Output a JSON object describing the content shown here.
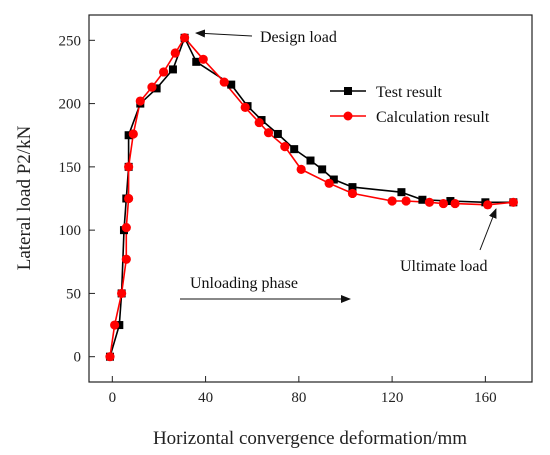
{
  "chart_data": {
    "type": "line",
    "title": "",
    "xlabel": "Horizontal convergence deformation/mm",
    "ylabel": "Lateral load P2/kN",
    "xlim": [
      -10,
      180
    ],
    "ylim": [
      -20,
      270
    ],
    "x_ticks": [
      0,
      40,
      80,
      120,
      160
    ],
    "y_ticks": [
      0,
      50,
      100,
      150,
      200,
      250
    ],
    "grid": false,
    "legend_position": "right",
    "series": [
      {
        "name": "Test result",
        "color": "#000000",
        "marker": "square",
        "points": [
          [
            -1,
            0
          ],
          [
            3,
            25
          ],
          [
            4,
            50
          ],
          [
            5,
            100
          ],
          [
            6,
            125
          ],
          [
            7,
            150
          ],
          [
            7,
            175
          ],
          [
            12,
            200
          ],
          [
            19,
            212
          ],
          [
            26,
            227
          ],
          [
            31,
            252
          ],
          [
            36,
            233
          ],
          [
            51,
            215
          ],
          [
            58,
            198
          ],
          [
            64,
            187
          ],
          [
            71,
            176
          ],
          [
            78,
            164
          ],
          [
            85,
            155
          ],
          [
            90,
            148
          ],
          [
            95,
            140
          ],
          [
            103,
            134
          ],
          [
            124,
            130
          ],
          [
            133,
            124
          ],
          [
            145,
            123
          ],
          [
            160,
            122
          ],
          [
            172,
            122
          ]
        ]
      },
      {
        "name": "Calculation result",
        "color": "#ff0000",
        "marker": "circle",
        "points": [
          [
            -1,
            0
          ],
          [
            1,
            25
          ],
          [
            4,
            50
          ],
          [
            6,
            77
          ],
          [
            6,
            102
          ],
          [
            7,
            125
          ],
          [
            7,
            150
          ],
          [
            9,
            176
          ],
          [
            12,
            202
          ],
          [
            17,
            213
          ],
          [
            22,
            225
          ],
          [
            27,
            240
          ],
          [
            31,
            252
          ],
          [
            39,
            235
          ],
          [
            48,
            217
          ],
          [
            57,
            197
          ],
          [
            63,
            185
          ],
          [
            67,
            177
          ],
          [
            74,
            166
          ],
          [
            81,
            148
          ],
          [
            93,
            137
          ],
          [
            103,
            129
          ],
          [
            120,
            123
          ],
          [
            126,
            123
          ],
          [
            136,
            122
          ],
          [
            142,
            121
          ],
          [
            147,
            121
          ],
          [
            161,
            120
          ],
          [
            172,
            122
          ]
        ]
      }
    ],
    "annotations": [
      {
        "text": "Design load",
        "target": [
          31,
          254
        ]
      },
      {
        "text": "Unloading phase"
      },
      {
        "text": "Ultimate load",
        "target": [
          172,
          122
        ]
      }
    ]
  }
}
